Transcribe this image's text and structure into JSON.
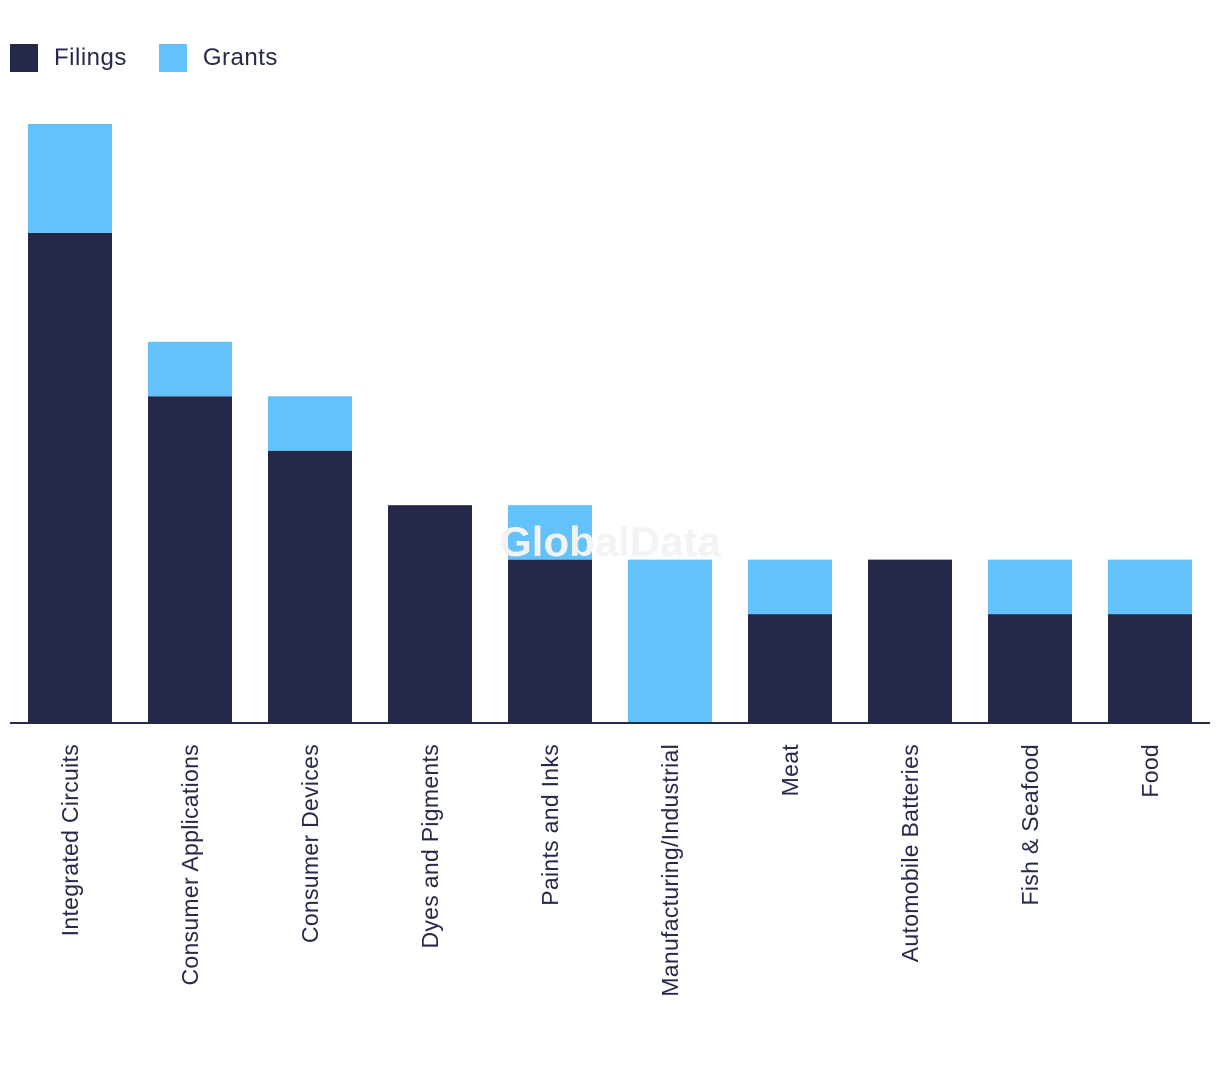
{
  "legend": {
    "items": [
      {
        "label": "Filings",
        "color": "#262849"
      },
      {
        "label": "Grants",
        "color": "#62c2f9"
      }
    ]
  },
  "watermark": "GlobalData",
  "chart_data": {
    "type": "bar",
    "stacked": true,
    "title": "",
    "xlabel": "",
    "ylabel": "",
    "ylim": [
      0,
      11
    ],
    "grid": false,
    "legend_position": "top-left",
    "categories": [
      "Integrated Circuits",
      "Consumer Applications",
      "Consumer Devices",
      "Dyes and Pigments",
      "Paints and Inks",
      "Manufacturing/Industrial",
      "Meat",
      "Automobile Batteries",
      "Fish & Seafood",
      "Food"
    ],
    "series": [
      {
        "name": "Filings",
        "color": "#262849",
        "values": [
          9,
          6,
          5,
          4,
          3,
          0,
          2,
          3,
          2,
          2
        ]
      },
      {
        "name": "Grants",
        "color": "#62c2f9",
        "values": [
          2,
          1,
          1,
          0,
          1,
          3,
          1,
          0,
          1,
          1
        ]
      }
    ]
  }
}
